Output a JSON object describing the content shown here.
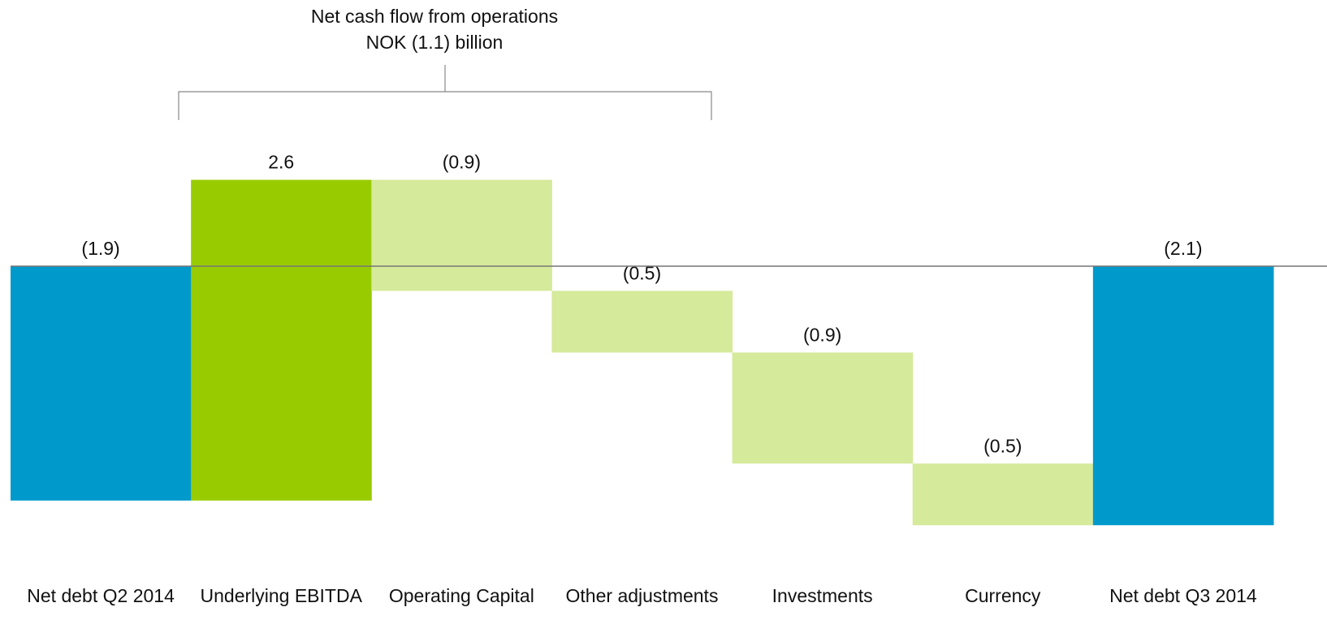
{
  "chart_data": {
    "type": "waterfall",
    "annotation": [
      "Net cash flow from operations",
      "NOK (1.1) billion"
    ],
    "categories": [
      "Net debt Q2 2014",
      "Underlying EBITDA",
      "Operating Capital",
      "Other adjustments",
      "Investments",
      "Currency",
      "Net debt Q3 2014"
    ],
    "values": [
      -1.9,
      2.6,
      -0.9,
      -0.5,
      -0.9,
      -0.5,
      -2.1
    ],
    "value_labels": [
      "(1.9)",
      "2.6",
      "(0.9)",
      "(0.5)",
      "(0.9)",
      "(0.5)",
      "(2.1)"
    ],
    "colors": [
      "#0099cc",
      "#99cc00",
      "#d5ea9a",
      "#d5ea9a",
      "#d5ea9a",
      "#d5ea9a",
      "#0099cc"
    ]
  }
}
